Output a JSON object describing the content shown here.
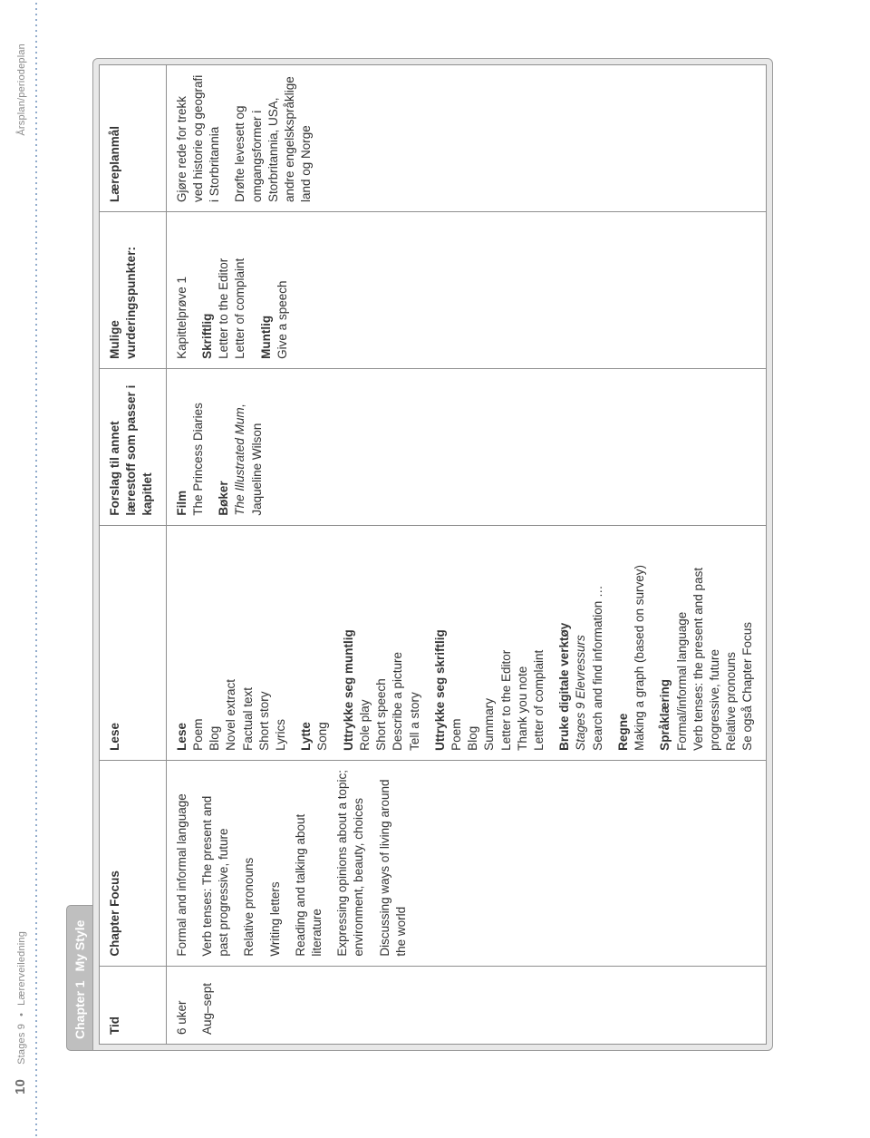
{
  "runhead": {
    "page_number": "10",
    "left_a": "Stages 9",
    "left_b": "Lærerveiledning",
    "right": "Årsplan/periodeplan"
  },
  "chapter": {
    "num": "Chapter 1",
    "title": "My Style"
  },
  "headers": {
    "tid": "Tid",
    "focus": "Chapter Focus",
    "lese": "Lese",
    "forslag": "Forslag til annet lærestoff som passer i kapitlet",
    "vurdering": "Mulige vurderingspunkter:",
    "laereplan": "Læreplanmål"
  },
  "tid": {
    "l1": "6 uker",
    "l2": "Aug–sept"
  },
  "focus": {
    "p1": "Formal and informal language",
    "p2": "Verb tenses: The present and past progressive, future",
    "p3": "Relative pronouns",
    "p4": "Writing letters",
    "p5": "Reading and talking about literature",
    "p6": "Expressing opinions about a topic; environment, beauty, choices",
    "p7": "Discussing ways of living around the world"
  },
  "lese": {
    "lese_h": "Lese",
    "lese_items": "Poem\nBlog\nNovel extract\nFactual text\nShort story\nLyrics",
    "lytte_h": "Lytte",
    "lytte_items": "Song",
    "munt_h": "Uttrykke seg muntlig",
    "munt_items": "Role play\nShort speech\nDescribe a picture\nTell a story",
    "skr_h": "Uttrykke seg skriftlig",
    "skr_items": "Poem\nBlog\nSummary\nLetter to the Editor\nThank you note\nLetter of complaint",
    "dig_h": "Bruke digitale verktøy",
    "dig_l1": "Stages 9 Elevressurs",
    "dig_l2": "Search and find information …",
    "regne_h": "Regne",
    "regne_items": "Making a graph (based on survey)",
    "sprak_h": "Språklæring",
    "sprak_items": "Formal/informal language\nVerb tenses: the present and past progressive, future\nRelative pronouns\nSe også Chapter Focus"
  },
  "forslag": {
    "film_h": "Film",
    "film_items": "The Princess Diaries",
    "boker_h": "Bøker",
    "boker_l1": "The Illustrated Mum",
    "boker_l2": ", Jaqueline Wilson"
  },
  "vurd": {
    "kap": "Kapittelprøve 1",
    "skr_h": "Skriftlig",
    "skr_items": "Letter to the Editor\nLetter of complaint",
    "munt_h": "Muntlig",
    "munt_items": "Give a speech"
  },
  "laere": {
    "p1": "Gjøre rede for trekk ved historie og geografi i Storbritannia",
    "p2": "Drøfte levesett og omgangsformer i Storbritannia, USA, andre engelskspråklige land og Norge"
  }
}
